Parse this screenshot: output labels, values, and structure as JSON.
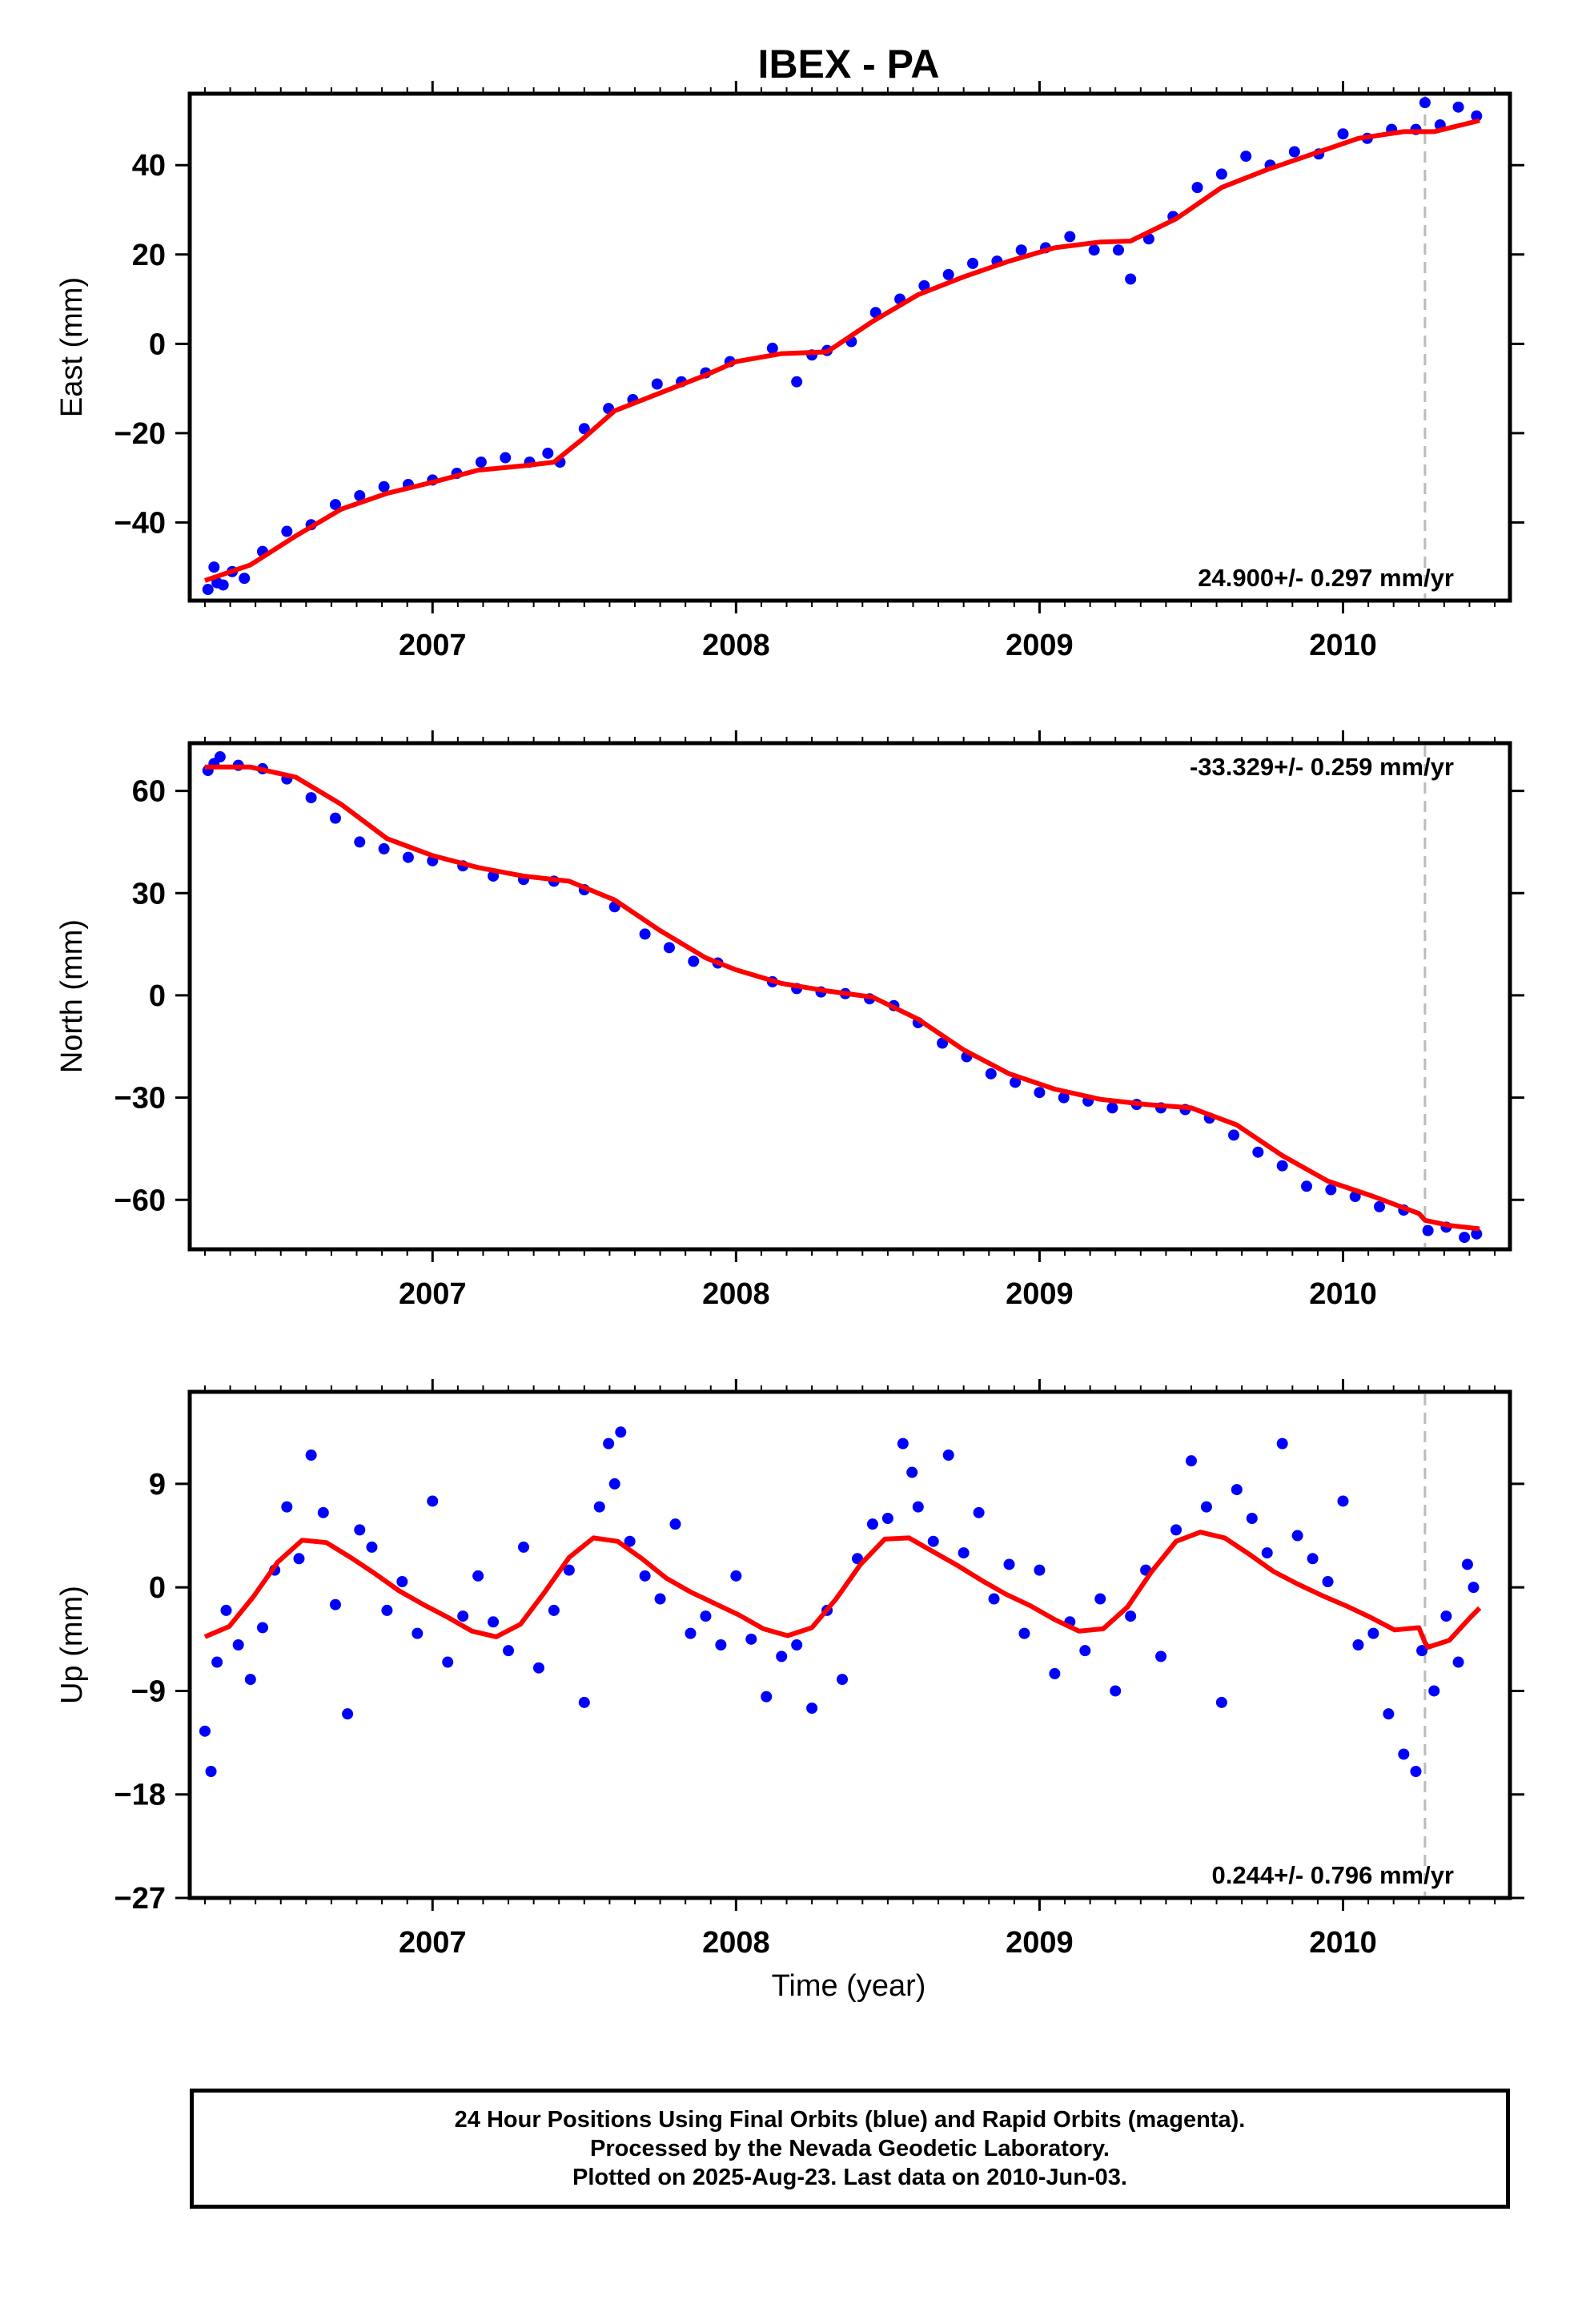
{
  "chart_data": {
    "title": "IBEX - PA",
    "xlabel": "Time (year)",
    "xlim": [
      2006.2,
      2010.55
    ],
    "x_ticks": [
      2007,
      2008,
      2009,
      2010
    ],
    "x_tick_labels": [
      "2007",
      "2008",
      "2009",
      "2010"
    ],
    "marker_x": 2010.27,
    "colors": {
      "data": "#0000ff",
      "model": "#ff0000",
      "marker": "#bbbbbb"
    },
    "panels": [
      {
        "type": "scatter",
        "ylabel": "East (mm)",
        "ylim": [
          -57.5,
          56
        ],
        "y_ticks": [
          -40,
          -20,
          0,
          20,
          40
        ],
        "y_tick_labels": [
          "−40",
          "−20",
          "0",
          "20",
          "40"
        ],
        "rate_label": "24.900+/- 0.297 mm/yr",
        "rate_position": "bottom-right",
        "model": {
          "x": [
            2006.25,
            2006.4,
            2006.55,
            2006.7,
            2006.85,
            2007.0,
            2007.15,
            2007.3,
            2007.4,
            2007.5,
            2007.6,
            2007.75,
            2007.9,
            2008.0,
            2008.15,
            2008.3,
            2008.45,
            2008.6,
            2008.75,
            2008.9,
            2009.05,
            2009.2,
            2009.3,
            2009.45,
            2009.6,
            2009.75,
            2009.9,
            2010.05,
            2010.2,
            2010.3,
            2010.45
          ],
          "y": [
            -53,
            -49.5,
            -43,
            -37,
            -33.5,
            -31,
            -28.3,
            -27.3,
            -26.5,
            -21,
            -15,
            -11,
            -7,
            -4,
            -2.2,
            -1.8,
            5,
            11,
            15,
            18.5,
            21.5,
            22.8,
            23,
            28,
            35,
            39,
            42.5,
            46,
            47.5,
            47.5,
            50
          ]
        },
        "points": {
          "x": [
            2006.26,
            2006.28,
            2006.29,
            2006.31,
            2006.34,
            2006.38,
            2006.44,
            2006.52,
            2006.6,
            2006.68,
            2006.76,
            2006.84,
            2006.92,
            2007.0,
            2007.08,
            2007.16,
            2007.24,
            2007.32,
            2007.38,
            2007.42,
            2007.5,
            2007.58,
            2007.66,
            2007.74,
            2007.82,
            2007.9,
            2007.98,
            2008.12,
            2008.2,
            2008.25,
            2008.3,
            2008.38,
            2008.46,
            2008.54,
            2008.62,
            2008.7,
            2008.78,
            2008.86,
            2008.94,
            2009.02,
            2009.1,
            2009.18,
            2009.26,
            2009.3,
            2009.36,
            2009.44,
            2009.52,
            2009.6,
            2009.68,
            2009.76,
            2009.84,
            2009.92,
            2010.0,
            2010.08,
            2010.16,
            2010.24,
            2010.27,
            2010.32,
            2010.38,
            2010.44
          ],
          "y": [
            -55,
            -50,
            -53.5,
            -54,
            -51,
            -52.5,
            -46.5,
            -42,
            -40.5,
            -36,
            -34,
            -32,
            -31.5,
            -30.5,
            -29,
            -26.5,
            -25.5,
            -26.5,
            -24.5,
            -26.5,
            -19,
            -14.5,
            -12.5,
            -9,
            -8.5,
            -6.5,
            -4,
            -1,
            -8.5,
            -2.5,
            -1.5,
            0.5,
            7,
            10,
            13,
            15.5,
            18,
            18.5,
            21,
            21.5,
            24,
            21,
            21,
            14.5,
            23.5,
            28.5,
            35,
            38,
            42,
            40,
            43,
            42.5,
            47,
            46,
            48,
            48,
            54,
            49,
            53,
            51
          ]
        }
      },
      {
        "type": "scatter",
        "ylabel": "North (mm)",
        "ylim": [
          -74.5,
          74
        ],
        "y_ticks": [
          -60,
          -30,
          0,
          30,
          60
        ],
        "y_tick_labels": [
          "−60",
          "−30",
          "0",
          "30",
          "60"
        ],
        "rate_label": "-33.329+/- 0.259 mm/yr",
        "rate_position": "top-right",
        "model": {
          "x": [
            2006.25,
            2006.4,
            2006.55,
            2006.7,
            2006.85,
            2007.0,
            2007.15,
            2007.3,
            2007.45,
            2007.6,
            2007.75,
            2007.9,
            2008.0,
            2008.15,
            2008.3,
            2008.45,
            2008.6,
            2008.75,
            2008.9,
            2009.05,
            2009.2,
            2009.35,
            2009.5,
            2009.65,
            2009.8,
            2009.95,
            2010.1,
            2010.25,
            2010.27,
            2010.35,
            2010.45
          ],
          "y": [
            67,
            67,
            64,
            56,
            46,
            41,
            37.5,
            35,
            33.5,
            28,
            19,
            11,
            7.5,
            3.5,
            1.3,
            -0.5,
            -7,
            -16,
            -23,
            -27.5,
            -30.5,
            -32,
            -33,
            -38,
            -47,
            -54.5,
            -59,
            -64,
            -66,
            -67.5,
            -68.5
          ]
        },
        "points": {
          "x": [
            2006.26,
            2006.28,
            2006.3,
            2006.36,
            2006.44,
            2006.52,
            2006.6,
            2006.68,
            2006.76,
            2006.84,
            2006.92,
            2007.0,
            2007.1,
            2007.2,
            2007.3,
            2007.4,
            2007.5,
            2007.6,
            2007.7,
            2007.78,
            2007.86,
            2007.94,
            2008.12,
            2008.2,
            2008.28,
            2008.36,
            2008.44,
            2008.52,
            2008.6,
            2008.68,
            2008.76,
            2008.84,
            2008.92,
            2009.0,
            2009.08,
            2009.16,
            2009.24,
            2009.32,
            2009.4,
            2009.48,
            2009.56,
            2009.64,
            2009.72,
            2009.8,
            2009.88,
            2009.96,
            2010.04,
            2010.12,
            2010.2,
            2010.28,
            2010.34,
            2010.4,
            2010.44
          ],
          "y": [
            66,
            68,
            70,
            67.5,
            66.5,
            63.5,
            58,
            52,
            45,
            43,
            40.5,
            39.5,
            38,
            35,
            34,
            33.5,
            31,
            26,
            18,
            14,
            10,
            9.5,
            4,
            2,
            1,
            0.5,
            -1,
            -3,
            -8,
            -14,
            -18,
            -23,
            -25.5,
            -28.5,
            -30,
            -31,
            -33,
            -32,
            -33,
            -33.5,
            -36,
            -41,
            -46,
            -50,
            -56,
            -57,
            -59,
            -62,
            -63,
            -69,
            -68,
            -71,
            -70
          ]
        }
      },
      {
        "type": "scatter",
        "ylabel": "Up (mm)",
        "ylim": [
          -27,
          17
        ],
        "y_ticks": [
          -27,
          -18,
          -9,
          0,
          9
        ],
        "y_tick_labels": [
          "−27",
          "−18",
          "−9",
          "0",
          "9"
        ],
        "rate_label": "0.244+/- 0.796 mm/yr",
        "rate_position": "bottom-right",
        "model": {
          "x": [
            2006.25,
            2006.33,
            2006.41,
            2006.49,
            2006.57,
            2006.65,
            2006.73,
            2006.81,
            2006.89,
            2006.97,
            2007.05,
            2007.13,
            2007.21,
            2007.29,
            2007.37,
            2007.45,
            2007.53,
            2007.61,
            2007.69,
            2007.77,
            2007.85,
            2007.93,
            2008.01,
            2008.09,
            2008.17,
            2008.25,
            2008.33,
            2008.41,
            2008.49,
            2008.57,
            2008.65,
            2008.73,
            2008.81,
            2008.89,
            2008.97,
            2009.05,
            2009.13,
            2009.21,
            2009.29,
            2009.37,
            2009.45,
            2009.53,
            2009.61,
            2009.69,
            2009.77,
            2009.85,
            2009.93,
            2010.01,
            2010.09,
            2010.17,
            2010.25,
            2010.27,
            2010.28,
            2010.35,
            2010.42,
            2010.45
          ],
          "y": [
            -4.3,
            -3.4,
            -0.8,
            2.2,
            4.1,
            3.9,
            2.6,
            1.2,
            -0.3,
            -1.5,
            -2.6,
            -3.8,
            -4.3,
            -3.2,
            -0.4,
            2.6,
            4.3,
            4.0,
            2.5,
            0.8,
            -0.4,
            -1.4,
            -2.4,
            -3.6,
            -4.2,
            -3.5,
            -1.0,
            2.0,
            4.2,
            4.3,
            3.1,
            1.9,
            0.6,
            -0.6,
            -1.6,
            -2.8,
            -3.8,
            -3.6,
            -1.7,
            1.4,
            4.0,
            4.8,
            4.3,
            2.9,
            1.4,
            0.3,
            -0.7,
            -1.6,
            -2.6,
            -3.7,
            -3.5,
            -4.8,
            -5.2,
            -4.6,
            -2.6,
            -1.8
          ]
        },
        "points": {
          "x": [
            2006.25,
            2006.27,
            2006.29,
            2006.32,
            2006.36,
            2006.4,
            2006.44,
            2006.48,
            2006.52,
            2006.56,
            2006.6,
            2006.64,
            2006.68,
            2006.72,
            2006.76,
            2006.8,
            2006.85,
            2006.9,
            2006.95,
            2007.0,
            2007.05,
            2007.1,
            2007.15,
            2007.2,
            2007.25,
            2007.3,
            2007.35,
            2007.4,
            2007.45,
            2007.5,
            2007.55,
            2007.58,
            2007.6,
            2007.62,
            2007.65,
            2007.7,
            2007.75,
            2007.8,
            2007.85,
            2007.9,
            2007.95,
            2008.0,
            2008.05,
            2008.1,
            2008.15,
            2008.2,
            2008.25,
            2008.3,
            2008.35,
            2008.4,
            2008.45,
            2008.5,
            2008.55,
            2008.58,
            2008.6,
            2008.65,
            2008.7,
            2008.75,
            2008.8,
            2008.85,
            2008.9,
            2008.95,
            2009.0,
            2009.05,
            2009.1,
            2009.15,
            2009.2,
            2009.25,
            2009.3,
            2009.35,
            2009.4,
            2009.45,
            2009.5,
            2009.55,
            2009.6,
            2009.65,
            2009.7,
            2009.75,
            2009.8,
            2009.85,
            2009.9,
            2009.95,
            2010.0,
            2010.05,
            2010.1,
            2010.15,
            2010.2,
            2010.24,
            2010.26,
            2010.3,
            2010.34,
            2010.38,
            2010.41,
            2010.43
          ],
          "y": [
            -12.5,
            -16,
            -6.5,
            -2,
            -5,
            -8,
            -3.5,
            1.5,
            7,
            2.5,
            11.5,
            6.5,
            -1.5,
            -11,
            5,
            3.5,
            -2,
            0.5,
            -4,
            7.5,
            -6.5,
            -2.5,
            1,
            -3,
            -5.5,
            3.5,
            -7,
            -2,
            1.5,
            -10,
            7,
            12.5,
            9,
            13.5,
            4,
            1,
            -1,
            5.5,
            -4,
            -2.5,
            -5,
            1,
            -4.5,
            -9.5,
            -6,
            -5,
            -10.5,
            -2,
            -8,
            2.5,
            5.5,
            6,
            12.5,
            10,
            7,
            4,
            11.5,
            3,
            6.5,
            -1,
            2,
            -4,
            1.5,
            -7.5,
            -3,
            -5.5,
            -1,
            -9,
            -2.5,
            1.5,
            -6,
            5,
            11,
            7,
            -10,
            8.5,
            6,
            3,
            12.5,
            4.5,
            2.5,
            0.5,
            7.5,
            -5,
            -4,
            -11,
            -14.5,
            -16,
            -5.5,
            -9,
            -2.5,
            -6.5,
            2,
            0
          ]
        }
      }
    ]
  },
  "footer": {
    "line1": "24 Hour Positions Using Final Orbits (blue) and Rapid Orbits (magenta).",
    "line2": "Processed by the Nevada Geodetic Laboratory.",
    "line3": "Plotted on 2025-Aug-23. Last data on 2010-Jun-03."
  }
}
